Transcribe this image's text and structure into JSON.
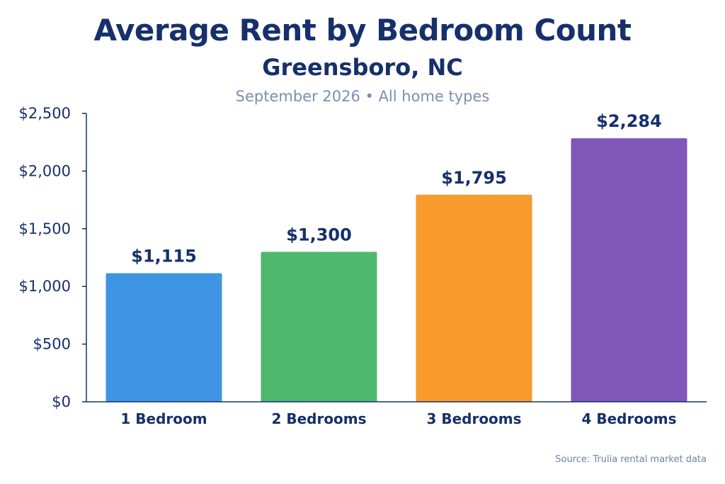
{
  "chart_data": {
    "type": "bar",
    "title": "Average Rent by Bedroom Count",
    "subtitle": "Greensboro, NC",
    "caption": "September 2026 • All home types",
    "source": "Source: Trulia rental market data",
    "categories": [
      "1 Bedroom",
      "2 Bedrooms",
      "3 Bedrooms",
      "4 Bedrooms"
    ],
    "values": [
      1115,
      1300,
      1795,
      2284
    ],
    "data_labels": [
      "$1,115",
      "$1,300",
      "$1,795",
      "$2,284"
    ],
    "colors": [
      "#3f95e3",
      "#4fb86e",
      "#f89a2c",
      "#8156b9"
    ],
    "ylim": [
      0,
      2500
    ],
    "yticks": [
      0,
      500,
      1000,
      1500,
      2000,
      2500
    ],
    "ytick_labels": [
      "$0",
      "$500",
      "$1,000",
      "$1,500",
      "$2,000",
      "$2,500"
    ],
    "xlabel": "",
    "ylabel": "",
    "grid": false,
    "legend": "none"
  }
}
